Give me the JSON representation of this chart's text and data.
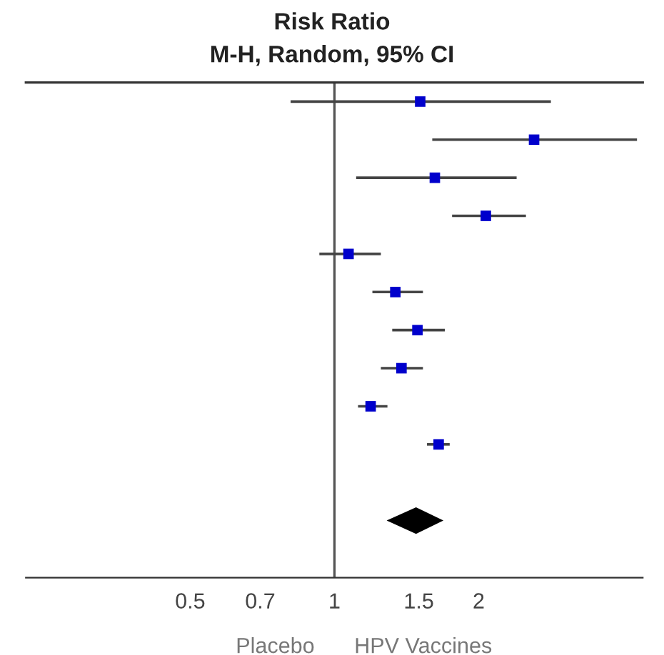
{
  "chart_data": {
    "type": "scatter",
    "orientation": "horizontal",
    "title": "Risk Ratio",
    "subtitle": "M-H, Random, 95% CI",
    "categories": [
      null,
      null,
      null,
      null,
      null,
      null,
      null,
      null,
      null,
      null,
      null,
      null,
      null
    ],
    "series": [
      {
        "color": "#0000cc",
        "marker": "square",
        "values": [
          1.51,
          2.61,
          1.62,
          2.07,
          1.07,
          1.34,
          1.49,
          1.38,
          1.19,
          1.65,
          null,
          null,
          null
        ],
        "errors": [
          [
            0.81,
            2.83
          ],
          [
            1.6,
            4.28
          ],
          [
            1.11,
            2.4
          ],
          [
            1.76,
            2.51
          ],
          [
            0.93,
            1.25
          ],
          [
            1.2,
            1.53
          ],
          [
            1.32,
            1.7
          ],
          [
            1.25,
            1.53
          ],
          [
            1.12,
            1.29
          ],
          [
            1.56,
            1.74
          ],
          null,
          null,
          null
        ]
      },
      {
        "color": "#000000",
        "marker": "diamond",
        "values": [
          null,
          null,
          null,
          null,
          null,
          null,
          null,
          null,
          null,
          null,
          null,
          1.48,
          null
        ],
        "errors": [
          null,
          null,
          null,
          null,
          null,
          null,
          null,
          null,
          null,
          null,
          null,
          [
            1.3,
            1.67
          ],
          null
        ]
      }
    ],
    "log": "x",
    "xlim": [
      0.227,
      4.4
    ],
    "xticks": [
      0.5,
      0.7,
      1,
      1.5,
      2
    ],
    "ref_lines": [
      {
        "axis": "x",
        "value": 1,
        "color": "#555555"
      }
    ],
    "annotations": [
      "Placebo",
      "HPV Vaccines"
    ],
    "grid": false,
    "legend": false,
    "tick_labels": "x"
  }
}
